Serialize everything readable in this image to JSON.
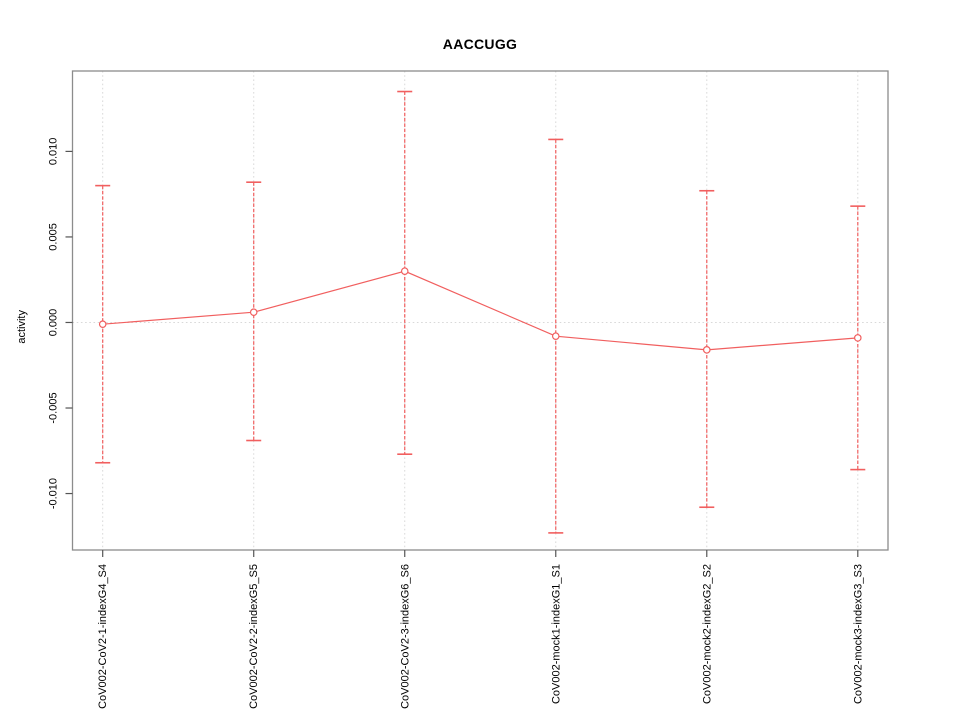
{
  "chart_data": {
    "type": "line",
    "title": "AACCUGG",
    "xlabel": "",
    "ylabel": "activity",
    "categories": [
      "CoV002-CoV2-1-indexG4_S4",
      "CoV002-CoV2-2-indexG5_S5",
      "CoV002-CoV2-3-indexG6_S6",
      "CoV002-mock1-indexG1_S1",
      "CoV002-mock2-indexG2_S2",
      "CoV002-mock3-indexG3_S3"
    ],
    "series": [
      {
        "name": "activity",
        "values": [
          -0.0001,
          0.0006,
          0.003,
          -0.0008,
          -0.0016,
          -0.0009
        ],
        "ci_upper": [
          0.008,
          0.0082,
          0.0135,
          0.0107,
          0.0077,
          0.0068
        ],
        "ci_lower": [
          -0.0082,
          -0.0069,
          -0.0077,
          -0.0123,
          -0.0108,
          -0.0086
        ]
      }
    ],
    "ylim": [
      -0.0133,
      0.0147
    ],
    "yticks": {
      "values": [
        0.01,
        0.005,
        0.0,
        -0.005,
        -0.01
      ],
      "labels": [
        "0.010",
        "0.005",
        "0.000",
        "-0.005",
        "-0.010"
      ]
    },
    "grid": {
      "vertical_gridlines": true,
      "zero_line": true,
      "legend": "none"
    },
    "colors": {
      "series": "#f15f5f",
      "grid": "#d9d9d9",
      "box": "#8c8c8c",
      "axis": "#555555",
      "text": "#000000",
      "background": "#ffffff"
    }
  }
}
